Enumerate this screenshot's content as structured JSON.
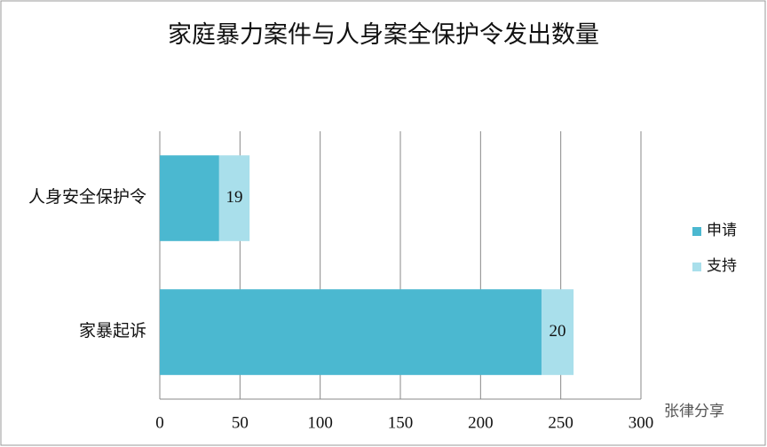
{
  "chart_data": {
    "type": "stacked-bar-horizontal",
    "title": "家庭暴力案件与人身案全保护令发出数量",
    "categories": [
      "人身安全保护令",
      "家暴起诉"
    ],
    "series": [
      {
        "name": "申请",
        "color": "#4bb8d0",
        "values": [
          37,
          238
        ],
        "show_labels": false
      },
      {
        "name": "支持",
        "color": "#a9dfeb",
        "values": [
          19,
          20
        ],
        "show_labels": true
      }
    ],
    "xlim": [
      0,
      300
    ],
    "xticks": [
      0,
      50,
      100,
      150,
      200,
      250,
      300
    ],
    "grid": true,
    "legend": "right",
    "watermark": "张律分享"
  }
}
